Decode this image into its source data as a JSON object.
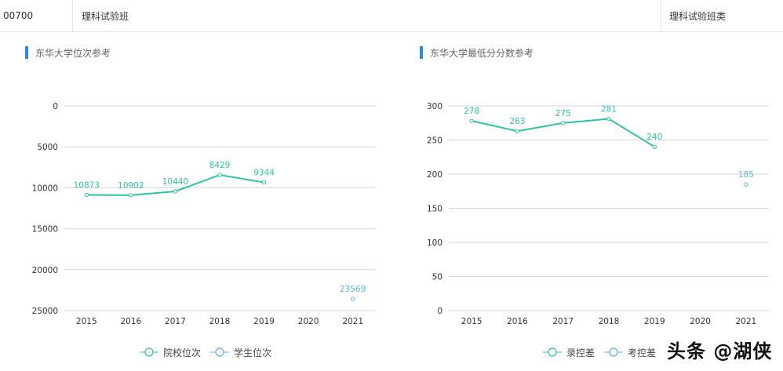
{
  "header": {
    "code": "00700",
    "major_name": "理科试验班",
    "category": "理科试验班类"
  },
  "colors": {
    "accent_bar": "#2a8be3",
    "series_school": "#2ec4a6",
    "series_student": "#5fb3d9",
    "grid": "#d6d6d6"
  },
  "left_chart": {
    "title": "东华大学位次参考",
    "legend": [
      {
        "label": "院校位次",
        "color": "#2ec4a6"
      },
      {
        "label": "学生位次",
        "color": "#5fb3d9"
      }
    ],
    "y_ticks": [
      "0",
      "5000",
      "10000",
      "15000",
      "20000",
      "25000"
    ],
    "x_ticks": [
      "2015",
      "2016",
      "2017",
      "2018",
      "2019",
      "2020",
      "2021"
    ]
  },
  "right_chart": {
    "title": "东华大学最低分分数参考",
    "legend": [
      {
        "label": "录控差",
        "color": "#2ec4a6"
      },
      {
        "label": "考控差",
        "color": "#5fb3d9"
      }
    ],
    "y_ticks": [
      "300",
      "250",
      "200",
      "150",
      "100",
      "50",
      "0"
    ],
    "x_ticks": [
      "2015",
      "2016",
      "2017",
      "2018",
      "2019",
      "2020",
      "2021"
    ]
  },
  "watermark": "头条 @湖侠",
  "chart_data": [
    {
      "type": "line",
      "title": "东华大学位次参考",
      "xlabel": "",
      "ylabel": "",
      "categories": [
        "2015",
        "2016",
        "2017",
        "2018",
        "2019",
        "2020",
        "2021"
      ],
      "ylim": [
        25000,
        0
      ],
      "y_inverted": true,
      "grid": true,
      "legend_position": "bottom",
      "series": [
        {
          "name": "院校位次",
          "values": [
            10873,
            10902,
            10440,
            8429,
            9344,
            null,
            null
          ]
        },
        {
          "name": "学生位次",
          "values": [
            null,
            null,
            null,
            null,
            null,
            null,
            23569
          ]
        }
      ]
    },
    {
      "type": "line",
      "title": "东华大学最低分分数参考",
      "xlabel": "",
      "ylabel": "",
      "categories": [
        "2015",
        "2016",
        "2017",
        "2018",
        "2019",
        "2020",
        "2021"
      ],
      "ylim": [
        0,
        300
      ],
      "grid": true,
      "legend_position": "bottom",
      "series": [
        {
          "name": "录控差",
          "values": [
            278,
            263,
            275,
            281,
            240,
            null,
            null
          ]
        },
        {
          "name": "考控差",
          "values": [
            null,
            null,
            null,
            null,
            null,
            null,
            185
          ]
        }
      ]
    }
  ]
}
